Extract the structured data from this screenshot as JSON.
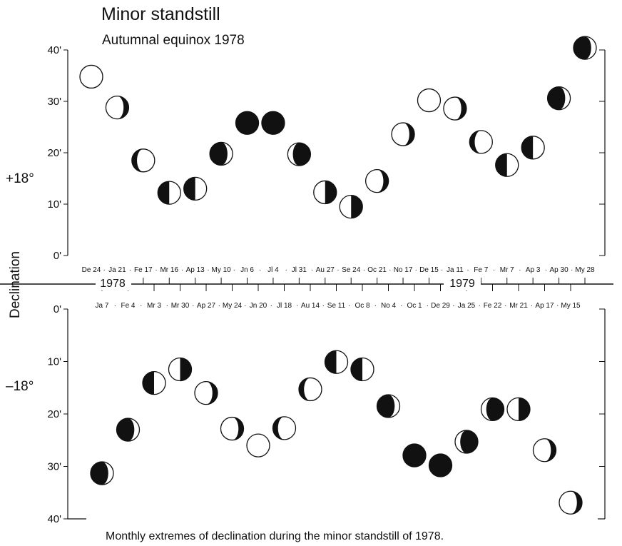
{
  "title": "Minor standstill",
  "subtitle": "Autumnal equinox 1978",
  "caption": "Monthly extremes of declination during the minor standstill of 1978.",
  "chart_data": {
    "type": "scatter",
    "ylabel": "Declination",
    "reference_labels": [
      "+18°",
      "–18°"
    ],
    "y_ticks_upper": [
      "0'",
      "10'",
      "20'",
      "30'",
      "40'"
    ],
    "y_ticks_lower": [
      "0'",
      "10'",
      "20'",
      "30'",
      "40'"
    ],
    "year_labels": [
      "1978",
      "1979"
    ],
    "top_dates": [
      "De 24",
      "Ja 21",
      "Fe 17",
      "Mr 16",
      "Ap 13",
      "My 10",
      "Jn 6",
      "Jl 4",
      "Jl 31",
      "Au 27",
      "Se 24",
      "Oc 21",
      "No 17",
      "De 15",
      "Ja 11",
      "Fe 7",
      "Mr 7",
      "Ap 3",
      "Ap 30",
      "My 28"
    ],
    "bottom_dates": [
      "Ja 7",
      "Fe 4",
      "Mr 3",
      "Mr 30",
      "Ap 27",
      "My 24",
      "Jn 20",
      "Jl 18",
      "Au 14",
      "Se 11",
      "Oc 8",
      "No 4",
      "Oc 1",
      "De 29",
      "Ja 25",
      "Fe 22",
      "Mr 21",
      "Ap 17",
      "My 15"
    ],
    "northern_extremes_arcmin_above_18deg": [
      {
        "date": "De 24",
        "y": 34.8,
        "phase": "full"
      },
      {
        "date": "Ja 21",
        "y": 28.8,
        "phase": "gibbous-right"
      },
      {
        "date": "Fe 17",
        "y": 18.5,
        "phase": "gibbous-left"
      },
      {
        "date": "Mr 16",
        "y": 12.2,
        "phase": "quarter-left-dark"
      },
      {
        "date": "Ap 13",
        "y": 13.0,
        "phase": "quarter-left-dark"
      },
      {
        "date": "My 10",
        "y": 19.8,
        "phase": "crescent-left"
      },
      {
        "date": "Jn 6",
        "y": 25.8,
        "phase": "new"
      },
      {
        "date": "Jl 4",
        "y": 25.8,
        "phase": "new"
      },
      {
        "date": "Jl 31",
        "y": 19.7,
        "phase": "crescent-right"
      },
      {
        "date": "Au 27",
        "y": 12.3,
        "phase": "quarter-right-dark"
      },
      {
        "date": "Se 24",
        "y": 9.5,
        "phase": "quarter-right-dark"
      },
      {
        "date": "Oc 21",
        "y": 14.5,
        "phase": "gibbous-right"
      },
      {
        "date": "No 17",
        "y": 23.6,
        "phase": "gibbous-right"
      },
      {
        "date": "De 15",
        "y": 30.2,
        "phase": "full"
      },
      {
        "date": "Ja 11",
        "y": 28.6,
        "phase": "gibbous-right"
      },
      {
        "date": "Fe 7",
        "y": 22.1,
        "phase": "gibbous-left"
      },
      {
        "date": "Mr 7",
        "y": 17.6,
        "phase": "quarter-left-dark"
      },
      {
        "date": "Ap 3",
        "y": 21.0,
        "phase": "quarter-left-dark"
      },
      {
        "date": "Ap 30",
        "y": 30.6,
        "phase": "crescent-left"
      },
      {
        "date": "My 28",
        "y": 40.4,
        "phase": "crescent-left"
      }
    ],
    "southern_extremes_arcmin_below_18deg": [
      {
        "date": "Ja 7",
        "y": 31.3,
        "phase": "crescent-left"
      },
      {
        "date": "Fe 4",
        "y": 23.0,
        "phase": "crescent-left"
      },
      {
        "date": "Mr 3",
        "y": 14.1,
        "phase": "quarter-left-dark"
      },
      {
        "date": "Mr 30",
        "y": 11.5,
        "phase": "quarter-right-dark"
      },
      {
        "date": "Ap 27",
        "y": 16.0,
        "phase": "gibbous-right"
      },
      {
        "date": "My 24",
        "y": 22.8,
        "phase": "gibbous-right"
      },
      {
        "date": "Jn 20",
        "y": 26.0,
        "phase": "full"
      },
      {
        "date": "Jl 18",
        "y": 22.7,
        "phase": "gibbous-left"
      },
      {
        "date": "Au 14",
        "y": 15.3,
        "phase": "gibbous-left"
      },
      {
        "date": "Se 11",
        "y": 10.1,
        "phase": "quarter-left-dark"
      },
      {
        "date": "Oc 8",
        "y": 11.5,
        "phase": "quarter-left-dark"
      },
      {
        "date": "No 4",
        "y": 18.5,
        "phase": "crescent-left"
      },
      {
        "date": "Oc 1",
        "y": 27.9,
        "phase": "new"
      },
      {
        "date": "De 29",
        "y": 29.8,
        "phase": "new"
      },
      {
        "date": "Ja 25",
        "y": 25.3,
        "phase": "crescent-right"
      },
      {
        "date": "Fe 22",
        "y": 19.1,
        "phase": "crescent-right"
      },
      {
        "date": "Mr 21",
        "y": 19.1,
        "phase": "quarter-right-dark"
      },
      {
        "date": "Ap 17",
        "y": 26.9,
        "phase": "gibbous-right"
      },
      {
        "date": "My 15",
        "y": 36.9,
        "phase": "gibbous-right"
      }
    ],
    "colors": {
      "ink": "#111111",
      "paper": "#ffffff"
    }
  }
}
